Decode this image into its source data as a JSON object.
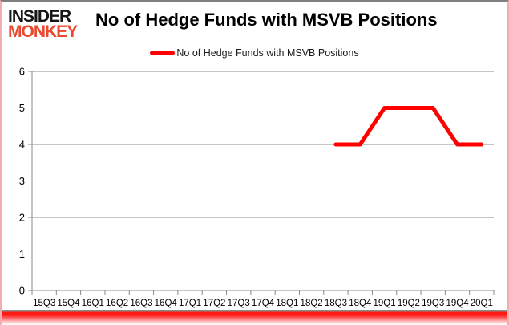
{
  "logo": {
    "line1": "INSIDER",
    "line2": "MONKEY",
    "line1_color": "#161616",
    "line2_color": "#e8492f"
  },
  "header": {
    "title": "No of Hedge Funds with MSVB Positions"
  },
  "legend": {
    "label": "No of Hedge Funds with MSVB Positions",
    "marker_color": "#ff0000"
  },
  "chart_data": {
    "type": "line",
    "title": "No of Hedge Funds with MSVB Positions",
    "categories": [
      "15Q3",
      "15Q4",
      "16Q1",
      "16Q2",
      "16Q3",
      "16Q4",
      "17Q1",
      "17Q2",
      "17Q3",
      "17Q4",
      "18Q1",
      "18Q2",
      "18Q3",
      "18Q4",
      "19Q1",
      "19Q2",
      "19Q3",
      "19Q4",
      "20Q1"
    ],
    "series": [
      {
        "name": "No of Hedge Funds with MSVB Positions",
        "color": "#ff0000",
        "values": [
          null,
          null,
          null,
          null,
          null,
          null,
          null,
          null,
          null,
          null,
          null,
          null,
          4,
          4,
          5,
          5,
          5,
          4,
          4
        ]
      }
    ],
    "xlabel": "",
    "ylabel": "",
    "ylim": [
      0,
      6
    ],
    "ytick_step": 1,
    "grid": true,
    "legend_position": "top-center",
    "axis_color": "#898989",
    "gridline_color": "#8c8c8c",
    "tick_label_color": "#000000"
  }
}
